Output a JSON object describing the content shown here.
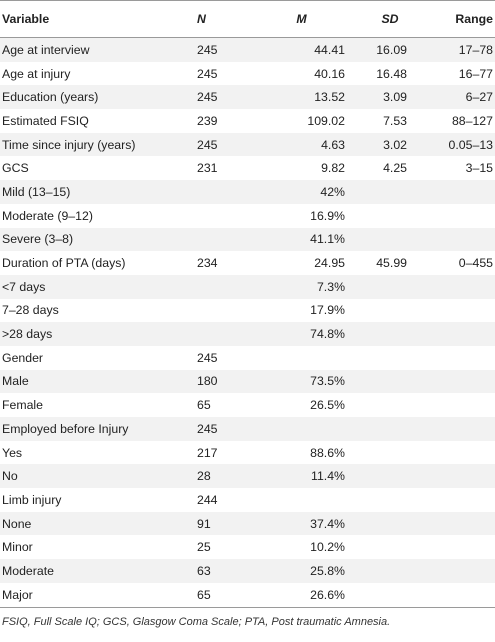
{
  "table": {
    "headers": {
      "variable": "Variable",
      "n": "N",
      "m": "M",
      "sd": "SD",
      "range": "Range"
    },
    "rows": [
      {
        "variable": "Age at interview",
        "n": "245",
        "m": "44.41",
        "sd": "16.09",
        "range": "17–78"
      },
      {
        "variable": "Age at injury",
        "n": "245",
        "m": "40.16",
        "sd": "16.48",
        "range": "16–77"
      },
      {
        "variable": "Education (years)",
        "n": "245",
        "m": "13.52",
        "sd": "3.09",
        "range": "6–27"
      },
      {
        "variable": "Estimated FSIQ",
        "n": "239",
        "m": "109.02",
        "sd": "7.53",
        "range": "88–127"
      },
      {
        "variable": "Time since injury (years)",
        "n": "245",
        "m": "4.63",
        "sd": "3.02",
        "range": "0.05–13"
      },
      {
        "variable": "GCS",
        "n": "231",
        "m": "9.82",
        "sd": "4.25",
        "range": "3–15"
      },
      {
        "variable": "Mild (13–15)",
        "n": "",
        "m": "42%",
        "sd": "",
        "range": ""
      },
      {
        "variable": "Moderate (9–12)",
        "n": "",
        "m": "16.9%",
        "sd": "",
        "range": ""
      },
      {
        "variable": "Severe (3–8)",
        "n": "",
        "m": "41.1%",
        "sd": "",
        "range": ""
      },
      {
        "variable": "Duration of PTA (days)",
        "n": "234",
        "m": "24.95",
        "sd": "45.99",
        "range": "0–455"
      },
      {
        "variable": "<7 days",
        "n": "",
        "m": "7.3%",
        "sd": "",
        "range": ""
      },
      {
        "variable": "7–28 days",
        "n": "",
        "m": "17.9%",
        "sd": "",
        "range": ""
      },
      {
        "variable": ">28 days",
        "n": "",
        "m": "74.8%",
        "sd": "",
        "range": ""
      },
      {
        "variable": "Gender",
        "n": "245",
        "m": "",
        "sd": "",
        "range": ""
      },
      {
        "variable": "Male",
        "n": "180",
        "m": "73.5%",
        "sd": "",
        "range": ""
      },
      {
        "variable": "Female",
        "n": "65",
        "m": "26.5%",
        "sd": "",
        "range": ""
      },
      {
        "variable": "Employed before Injury",
        "n": "245",
        "m": "",
        "sd": "",
        "range": ""
      },
      {
        "variable": "Yes",
        "n": "217",
        "m": "88.6%",
        "sd": "",
        "range": ""
      },
      {
        "variable": "No",
        "n": "28",
        "m": "11.4%",
        "sd": "",
        "range": ""
      },
      {
        "variable": "Limb injury",
        "n": "244",
        "m": "",
        "sd": "",
        "range": ""
      },
      {
        "variable": "None",
        "n": "91",
        "m": "37.4%",
        "sd": "",
        "range": ""
      },
      {
        "variable": "Minor",
        "n": "25",
        "m": "10.2%",
        "sd": "",
        "range": ""
      },
      {
        "variable": "Moderate",
        "n": "63",
        "m": "25.8%",
        "sd": "",
        "range": ""
      },
      {
        "variable": "Major",
        "n": "65",
        "m": "26.6%",
        "sd": "",
        "range": ""
      }
    ]
  },
  "footnote": "FSIQ, Full Scale IQ; GCS, Glasgow Coma Scale; PTA, Post traumatic Amnesia.",
  "colors": {
    "stripe": "#f2f2f2",
    "rule": "#9a9a9a",
    "text": "#222222"
  }
}
